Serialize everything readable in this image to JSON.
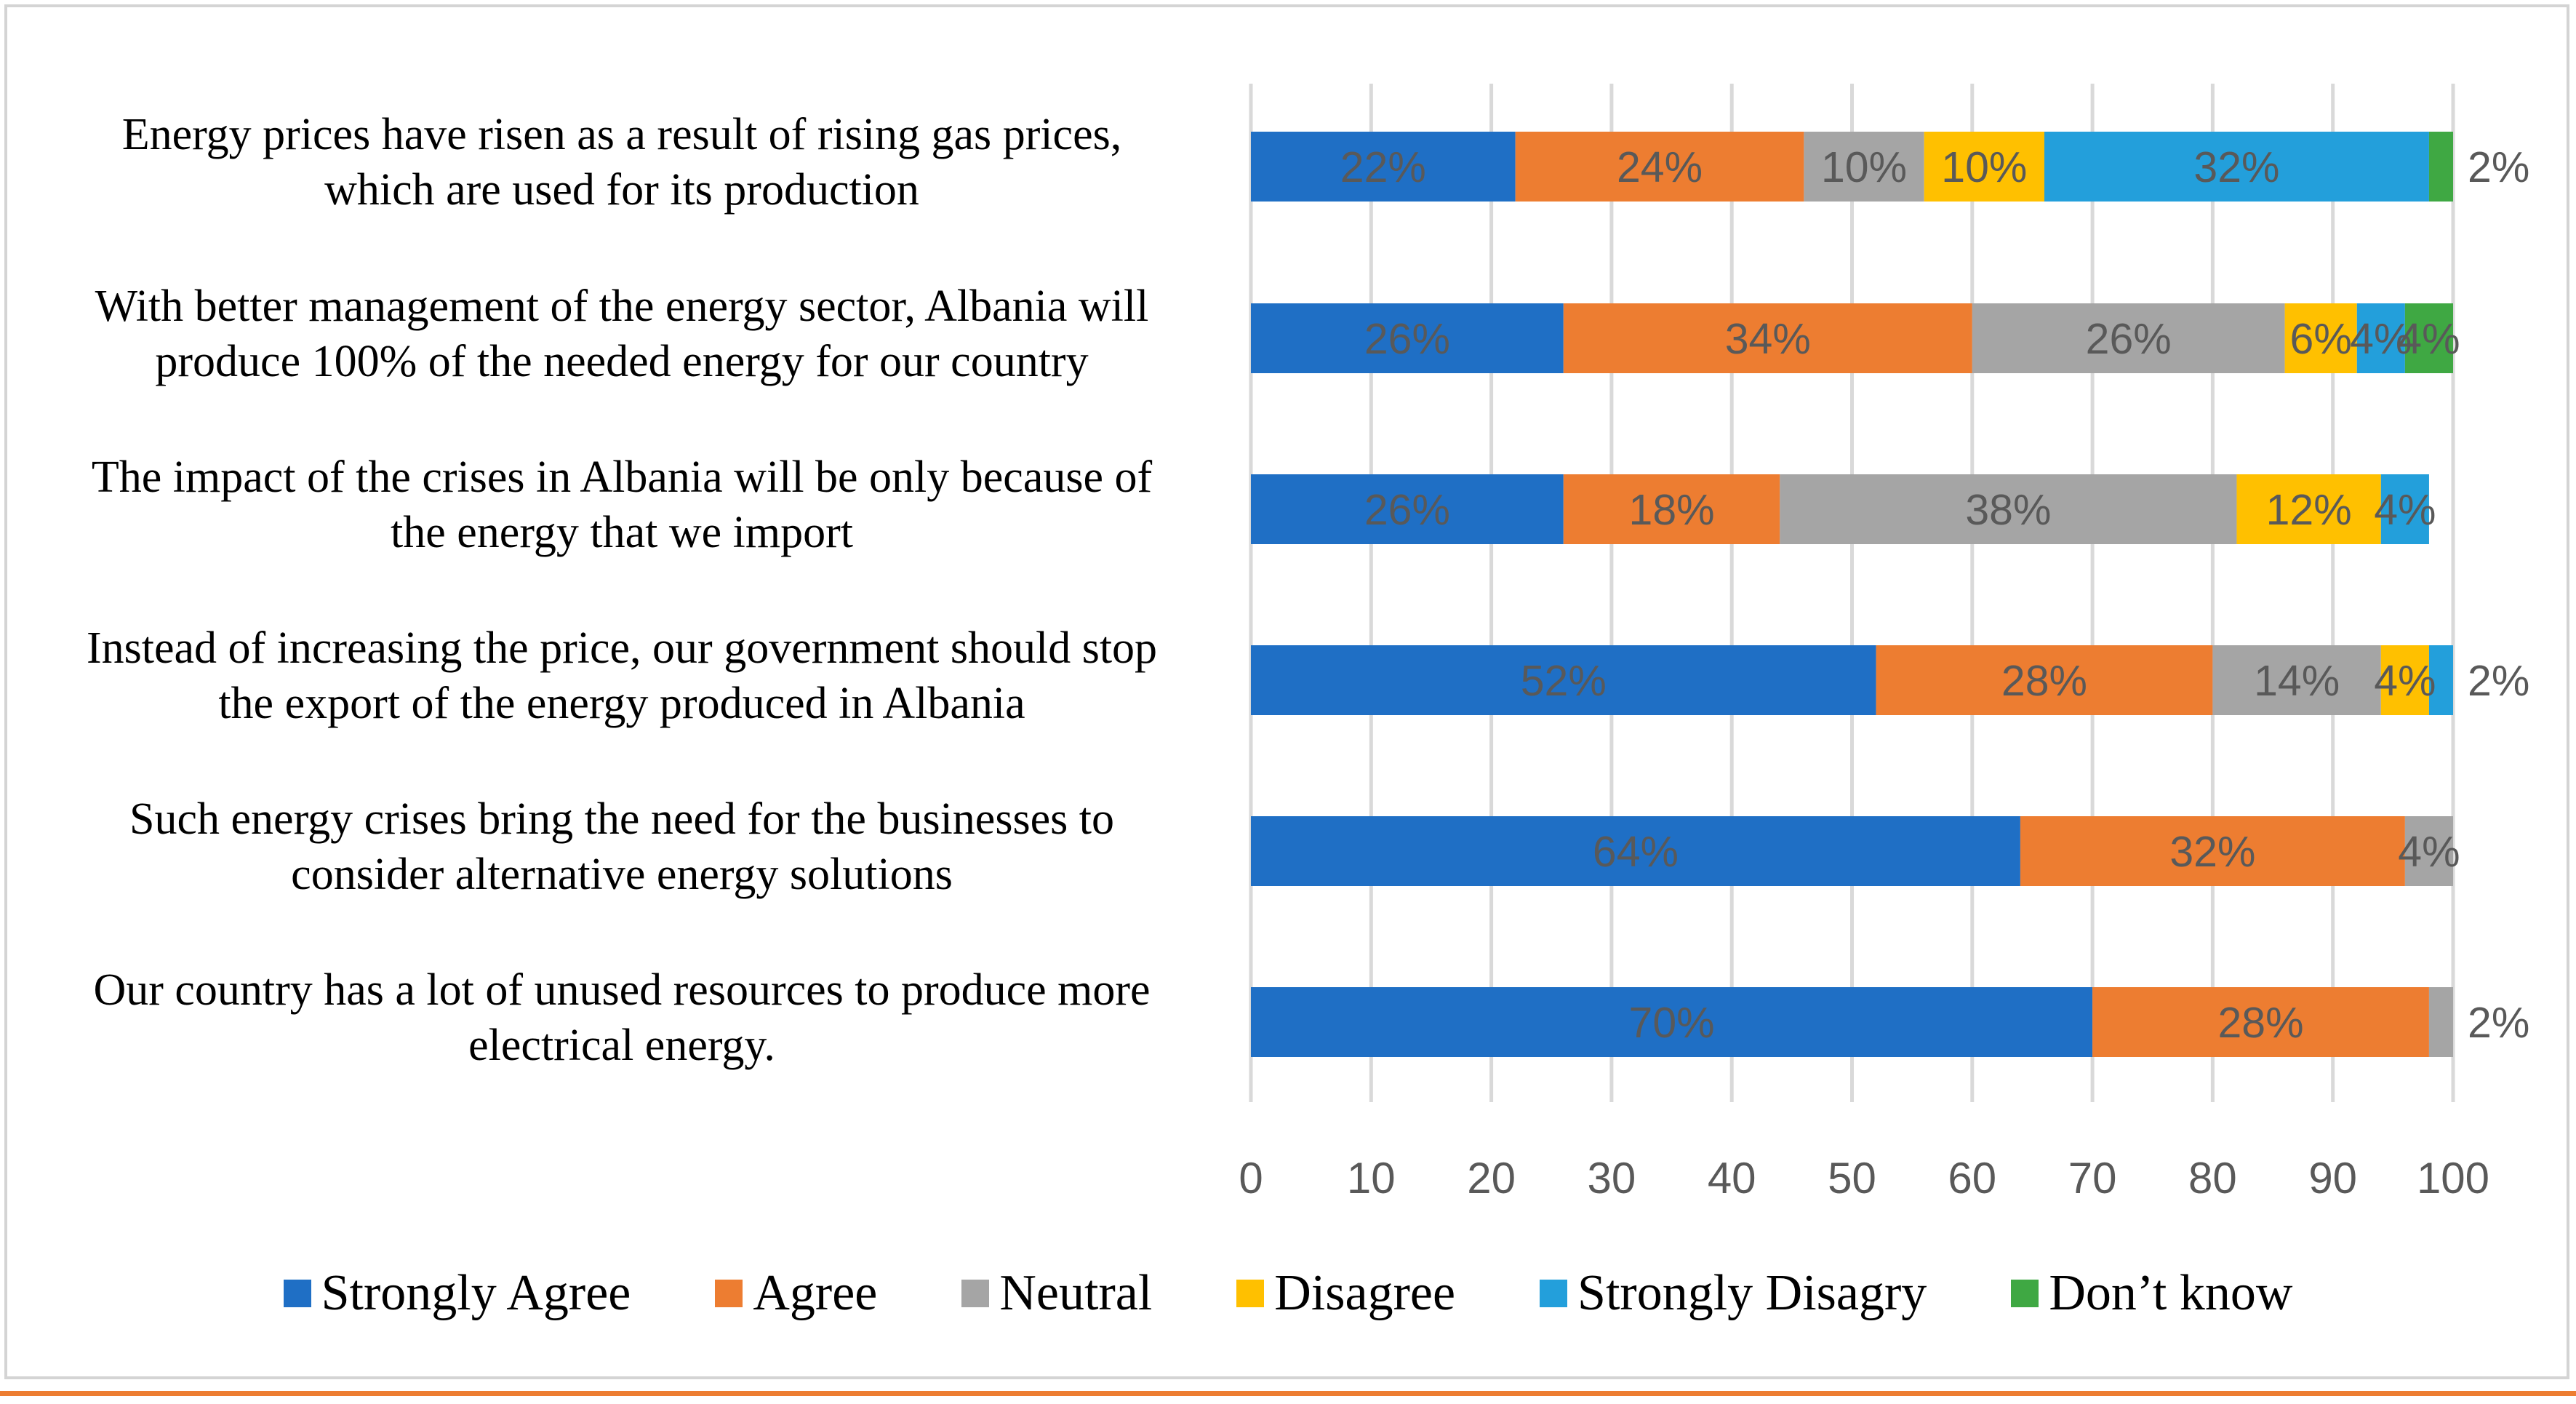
{
  "chart_data": {
    "type": "bar",
    "orientation": "horizontal",
    "stacked": true,
    "categories": [
      "Energy prices have risen as a result of rising gas prices, which are used for its production",
      "With better management of the energy sector, Albania will produce 100% of the needed energy for our country",
      "The impact of the crises in Albania will be only because of the energy that we import",
      "Instead of increasing the price, our government should stop the export of the energy produced in Albania",
      "Such energy crises bring the need for the businesses to consider alternative energy solutions",
      "Our country has a lot of unused resources to produce more electrical energy."
    ],
    "category_lines": [
      [
        "Energy prices have risen as a result of rising gas prices,",
        "which are used for its production"
      ],
      [
        "With better management of the energy sector, Albania will",
        "produce 100% of the needed energy for our country"
      ],
      [
        "The impact of the crises in Albania will be only because of",
        "the energy that we import"
      ],
      [
        "Instead of increasing the price, our government should stop",
        "the export of the energy produced in Albania"
      ],
      [
        "Such energy crises bring the need for the businesses to",
        "consider alternative energy solutions"
      ],
      [
        "Our country has a lot of unused resources to produce more",
        "electrical energy."
      ]
    ],
    "series": [
      {
        "name": "Strongly Agree",
        "color": "#1f6fc5",
        "values": [
          22,
          26,
          26,
          52,
          64,
          70
        ]
      },
      {
        "name": "Agree",
        "color": "#ed7d31",
        "values": [
          24,
          34,
          18,
          28,
          32,
          28
        ]
      },
      {
        "name": "Neutral",
        "color": "#a5a5a5",
        "values": [
          10,
          26,
          38,
          14,
          4,
          2
        ]
      },
      {
        "name": "Disagree",
        "color": "#ffc000",
        "values": [
          10,
          6,
          12,
          4,
          0,
          0
        ]
      },
      {
        "name": "Strongly Disagry",
        "color": "#239fdb",
        "values": [
          32,
          4,
          4,
          2,
          0,
          0
        ]
      },
      {
        "name": "Don’t know",
        "color": "#3fa843",
        "values": [
          2,
          4,
          0,
          0,
          0,
          0
        ]
      }
    ],
    "data_labels": [
      [
        "22%",
        "24%",
        "10%",
        "10%",
        "32%",
        "2%"
      ],
      [
        "26%",
        "34%",
        "26%",
        "6%",
        "4%",
        "4%"
      ],
      [
        "26%",
        "18%",
        "38%",
        "12%",
        "4%",
        null
      ],
      [
        "52%",
        "28%",
        "14%",
        "4%",
        "2%",
        null
      ],
      [
        "64%",
        "32%",
        "4%",
        null,
        null,
        null
      ],
      [
        "70%",
        "28%",
        "2%",
        null,
        null,
        null
      ]
    ],
    "xlim": [
      0,
      100
    ],
    "xticks": [
      "0",
      "10",
      "20",
      "30",
      "40",
      "50",
      "60",
      "70",
      "80",
      "90",
      "100"
    ],
    "grid": true,
    "legend_position": "bottom"
  }
}
